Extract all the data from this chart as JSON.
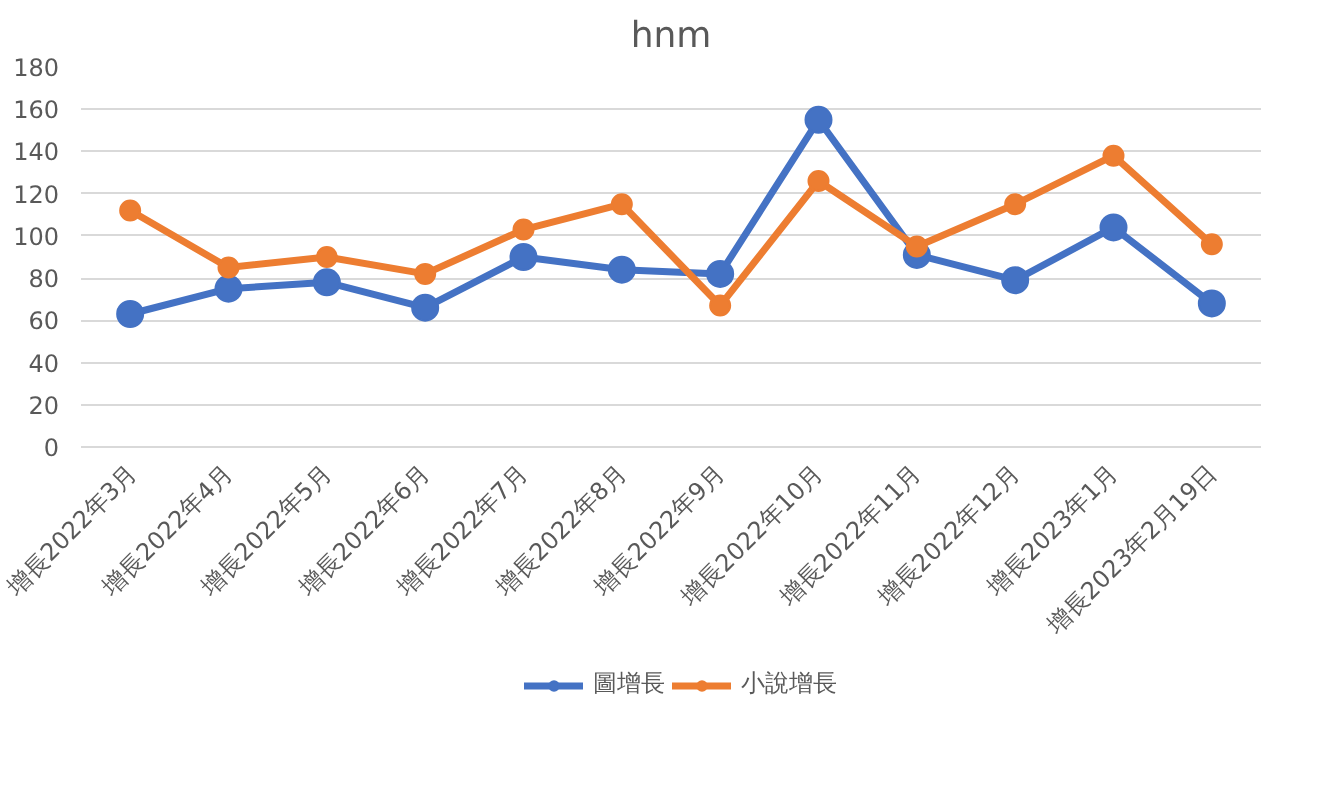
{
  "chart_data": {
    "type": "line",
    "title": "hnm",
    "categories": [
      "增長2022年3月",
      "增長2022年4月",
      "增長2022年5月",
      "增長2022年6月",
      "增長2022年7月",
      "增長2022年8月",
      "增長2022年9月",
      "增長2022年10月",
      "增長2022年11月",
      "增長2022年12月",
      "增長2023年1月",
      "增長2023年2月19日"
    ],
    "series": [
      {
        "name": "圖增長",
        "color": "#4472c4",
        "values": [
          63,
          75,
          78,
          66,
          90,
          84,
          82,
          155,
          91,
          79,
          104,
          68
        ]
      },
      {
        "name": "小說增長",
        "color": "#ed7d31",
        "values": [
          112,
          85,
          90,
          82,
          103,
          115,
          67,
          126,
          95,
          115,
          138,
          96
        ]
      }
    ],
    "ylim": [
      0,
      180
    ],
    "yticks": [
      0,
      20,
      40,
      60,
      80,
      100,
      120,
      140,
      160,
      180
    ],
    "grid": "y",
    "legend": "bottom",
    "marker": "circle",
    "line_style": "solid"
  }
}
